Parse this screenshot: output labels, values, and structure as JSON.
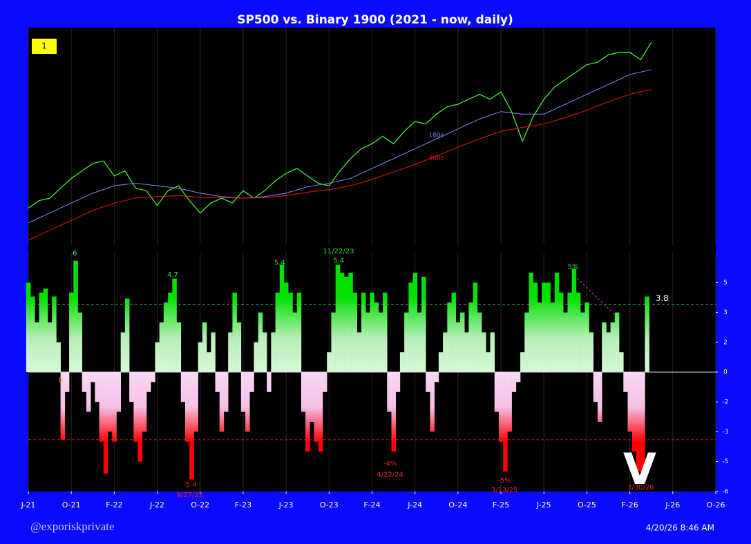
{
  "badge": "1",
  "signature": "@exporiskprivate",
  "timestamp": "4/20/26 8:46 AM",
  "mark": "V",
  "chart_data": [
    {
      "type": "line",
      "title": "SP500 vs. Binary 1900 (2021 - now, daily)",
      "xlim": [
        0,
        16
      ],
      "xticks": [
        0,
        1,
        2,
        3,
        4,
        5,
        6,
        7,
        8,
        9,
        10,
        11,
        12,
        13,
        14,
        15,
        16
      ],
      "ylim": [
        3000,
        7400
      ],
      "grid": true,
      "series": [
        {
          "color": "#44ee33",
          "x": [
            0,
            0.25,
            0.5,
            0.75,
            1,
            1.25,
            1.5,
            1.75,
            2,
            2.25,
            2.5,
            2.75,
            3,
            3.25,
            3.5,
            3.75,
            4,
            4.25,
            4.5,
            4.75,
            5,
            5.25,
            5.5,
            5.75,
            6,
            6.25,
            6.5,
            6.75,
            7,
            7.25,
            7.5,
            7.75,
            8,
            8.25,
            8.5,
            8.75,
            9,
            9.25,
            9.5,
            9.75,
            10,
            10.25,
            10.5,
            10.75,
            11,
            11.25,
            11.5,
            11.75,
            12,
            12.25,
            12.5,
            12.75,
            13,
            13.25,
            13.5,
            13.75,
            14,
            14.25,
            14.5
          ],
          "values": [
            3750,
            3900,
            3950,
            4150,
            4350,
            4500,
            4650,
            4700,
            4400,
            4500,
            4150,
            4100,
            3800,
            4100,
            4200,
            3900,
            3650,
            3850,
            3950,
            3850,
            4100,
            3950,
            4100,
            4300,
            4450,
            4550,
            4400,
            4250,
            4200,
            4500,
            4750,
            4950,
            5050,
            5200,
            5050,
            5300,
            5500,
            5450,
            5650,
            5800,
            5850,
            5950,
            6050,
            5950,
            6100,
            5700,
            5100,
            5600,
            5950,
            6200,
            6350,
            6500,
            6650,
            6700,
            6850,
            6900,
            6900,
            6750,
            7100
          ]
        },
        {
          "color": "#7080e0",
          "x": [
            0,
            0.5,
            1,
            1.5,
            2,
            2.5,
            3,
            3.5,
            4,
            4.5,
            5,
            5.5,
            6,
            6.5,
            7,
            7.5,
            8,
            8.5,
            9,
            9.5,
            10,
            10.5,
            11,
            11.5,
            12,
            12.5,
            13,
            13.5,
            14,
            14.5
          ],
          "values": [
            3450,
            3650,
            3850,
            4050,
            4200,
            4250,
            4200,
            4150,
            4050,
            3980,
            3950,
            3980,
            4050,
            4180,
            4250,
            4350,
            4550,
            4750,
            4950,
            5150,
            5350,
            5550,
            5700,
            5650,
            5650,
            5850,
            6050,
            6250,
            6450,
            6550
          ]
        },
        {
          "color": "#dd1111",
          "x": [
            0,
            0.5,
            1,
            1.5,
            2,
            2.5,
            3,
            3.5,
            4,
            4.5,
            5,
            5.5,
            6,
            6.5,
            7,
            7.5,
            8,
            8.5,
            9,
            9.5,
            10,
            10.5,
            11,
            11.5,
            12,
            12.5,
            13,
            13.5,
            14,
            14.5
          ],
          "values": [
            3100,
            3300,
            3500,
            3700,
            3850,
            3950,
            3980,
            4000,
            3970,
            3960,
            3950,
            3960,
            4000,
            4070,
            4120,
            4200,
            4330,
            4480,
            4630,
            4800,
            4980,
            5150,
            5300,
            5380,
            5450,
            5580,
            5730,
            5900,
            6050,
            6150
          ]
        }
      ],
      "annotations": [
        {
          "text": "180e",
          "x": 9.5,
          "y": 5221,
          "color": "#7080e0"
        },
        {
          "text": "400e",
          "x": 9.5,
          "y": 4760,
          "color": "#dd1111"
        }
      ]
    },
    {
      "type": "bar",
      "xlim": [
        0,
        16
      ],
      "xticks": [
        {
          "value": 0,
          "label": "J-21"
        },
        {
          "value": 1,
          "label": "O-21"
        },
        {
          "value": 2,
          "label": "F-22"
        },
        {
          "value": 3,
          "label": "J-22"
        },
        {
          "value": 4,
          "label": "O-22"
        },
        {
          "value": 5,
          "label": "F-23"
        },
        {
          "value": 6,
          "label": "J-23"
        },
        {
          "value": 7,
          "label": "O-23"
        },
        {
          "value": 8,
          "label": "F-24"
        },
        {
          "value": 9,
          "label": "J-24"
        },
        {
          "value": 10,
          "label": "O-24"
        },
        {
          "value": 11,
          "label": "F-25"
        },
        {
          "value": 12,
          "label": "J-25"
        },
        {
          "value": 13,
          "label": "O-25"
        },
        {
          "value": 14,
          "label": "F-26"
        },
        {
          "value": 15,
          "label": "J-26"
        },
        {
          "value": 16,
          "label": "O-26"
        }
      ],
      "ylim": [
        -6,
        6
      ],
      "yticks": [
        {
          "value": 4.5,
          "label": "5"
        },
        3,
        {
          "value": 1.5,
          "label": "2"
        },
        0,
        {
          "value": -1.5,
          "label": "-2"
        },
        -3,
        {
          "value": -4.5,
          "label": "-5"
        },
        -6
      ],
      "grid": true,
      "thresholds": [
        {
          "value": 3.4,
          "color": "#33cc33"
        },
        {
          "value": -3.4,
          "color": "#dd2222"
        }
      ],
      "x": [
        0,
        0.1,
        0.2,
        0.3,
        0.4,
        0.5,
        0.6,
        0.7,
        0.8,
        0.9,
        1,
        1.1,
        1.2,
        1.3,
        1.4,
        1.5,
        1.6,
        1.7,
        1.8,
        1.9,
        2,
        2.1,
        2.2,
        2.3,
        2.4,
        2.5,
        2.6,
        2.7,
        2.8,
        2.9,
        3,
        3.1,
        3.2,
        3.3,
        3.4,
        3.5,
        3.6,
        3.7,
        3.8,
        3.9,
        4,
        4.1,
        4.2,
        4.3,
        4.4,
        4.5,
        4.6,
        4.7,
        4.8,
        4.9,
        5,
        5.1,
        5.2,
        5.3,
        5.4,
        5.5,
        5.6,
        5.7,
        5.8,
        5.9,
        6,
        6.1,
        6.2,
        6.3,
        6.4,
        6.5,
        6.6,
        6.7,
        6.8,
        6.9,
        7,
        7.1,
        7.2,
        7.3,
        7.4,
        7.5,
        7.6,
        7.7,
        7.8,
        7.9,
        8,
        8.1,
        8.2,
        8.3,
        8.4,
        8.5,
        8.6,
        8.7,
        8.8,
        8.9,
        9,
        9.1,
        9.2,
        9.3,
        9.4,
        9.5,
        9.6,
        9.7,
        9.8,
        9.9,
        10,
        10.1,
        10.2,
        10.3,
        10.4,
        10.5,
        10.6,
        10.7,
        10.8,
        10.9,
        11,
        11.1,
        11.2,
        11.3,
        11.4,
        11.5,
        11.6,
        11.7,
        11.8,
        11.9,
        12,
        12.1,
        12.2,
        12.3,
        12.4,
        12.5,
        12.6,
        12.7,
        12.8,
        12.9,
        13,
        13.1,
        13.2,
        13.3,
        13.4,
        13.5,
        13.6,
        13.7,
        13.8,
        13.9,
        14,
        14.1,
        14.2,
        14.3,
        14.4
      ],
      "values": [
        4.5,
        3.8,
        2.5,
        4,
        4.2,
        2.5,
        3.8,
        1.5,
        -3.4,
        -1,
        4,
        5.6,
        3,
        -1,
        -2,
        -0.5,
        -1.5,
        -3.5,
        -5.1,
        -3,
        -3.5,
        -2,
        2,
        3.7,
        -1.5,
        -3.5,
        -4.5,
        -3,
        -1,
        -0.5,
        1.5,
        2.5,
        3.5,
        4,
        4.7,
        2.5,
        -1.5,
        -3.5,
        -5.4,
        -3,
        1.5,
        2.5,
        1,
        2,
        -1,
        -3,
        -2,
        2,
        4,
        2.5,
        -2,
        -3,
        -1,
        1.5,
        3,
        2,
        -1,
        2,
        4,
        5.4,
        4.5,
        4,
        3,
        4,
        -2,
        -4,
        -2.5,
        -3.5,
        -4,
        -1,
        1,
        3,
        5.4,
        5,
        4.8,
        5,
        4,
        2,
        4,
        3,
        4,
        3.5,
        3,
        4,
        -2,
        -4,
        -1,
        1,
        3,
        4.5,
        5,
        3,
        4.8,
        -1,
        -3,
        -0.5,
        1,
        2,
        3.5,
        4,
        2.5,
        3,
        2,
        3.5,
        4.5,
        3,
        2,
        1,
        2,
        -2,
        -3.5,
        -5,
        -3,
        -1,
        -0.5,
        1,
        3,
        5,
        4.5,
        3.5,
        4.5,
        4.5,
        3.5,
        5,
        4,
        3,
        4,
        5.2,
        4,
        3,
        3.5,
        2,
        -1.5,
        -2.5,
        2.5,
        2,
        2.5,
        3,
        1,
        -1,
        -3,
        -4,
        -5,
        -5.3,
        3.8
      ],
      "annotations": [
        {
          "text": "6",
          "x": 1.08,
          "y": 5.97,
          "color": "#5fd8d8"
        },
        {
          "text": "0",
          "x": 0.75,
          "y": -0.4,
          "color": "#ffa020"
        },
        {
          "text": "4.7",
          "x": 3.36,
          "y": 4.9,
          "color": "#33dd33"
        },
        {
          "text": "5.4",
          "x": 5.85,
          "y": 5.5,
          "color": "#33dd33"
        },
        {
          "text": "11/22/23",
          "x": 7.22,
          "y": 6.08,
          "color": "#33dd33"
        },
        {
          "text": "5.4",
          "x": 7.22,
          "y": 5.6,
          "color": "#33dd33"
        },
        {
          "text": "5%",
          "x": 12.68,
          "y": 5.3,
          "color": "#33dd33"
        },
        {
          "text": "3.8",
          "x": 14.75,
          "y": 3.7,
          "color": "#ffffff"
        },
        {
          "text": "-5.4",
          "x": 3.76,
          "y": -5.66,
          "color": "#ee2222"
        },
        {
          "text": "9/27/22",
          "x": 3.76,
          "y": -6.18,
          "color": "#ee2222"
        },
        {
          "text": "-4%",
          "x": 8.42,
          "y": -4.6,
          "color": "#ee2222"
        },
        {
          "text": "4/22/24",
          "x": 8.42,
          "y": -5.15,
          "color": "#ee2222"
        },
        {
          "text": "-5%",
          "x": 11.08,
          "y": -5.45,
          "color": "#ee2222"
        },
        {
          "text": "3/13/25",
          "x": 11.08,
          "y": -5.94,
          "color": "#ee2222"
        },
        {
          "text": "3/30/26",
          "x": 14.25,
          "y": -5.8,
          "color": "#ee2222"
        }
      ]
    }
  ]
}
